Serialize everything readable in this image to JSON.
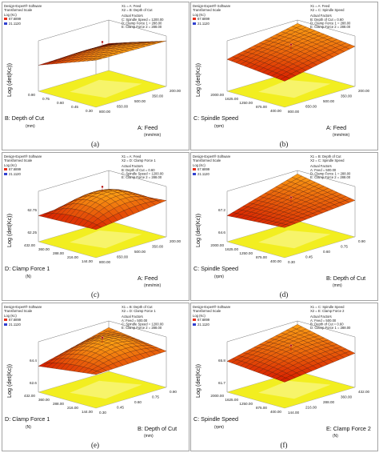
{
  "figure": {
    "software_name": "Design-Expert® Software",
    "scale_note": "Transformed Scale"
  },
  "chart_data": [
    {
      "type": "surface",
      "panel_label": "(a)",
      "legend": {
        "title": "Log (Kc)",
        "max": "67.6899",
        "min": "21.1120"
      },
      "factors": [
        "X1 = A: Feed",
        "X2 = B: Depth of Cut"
      ],
      "actual_title": "Actual Factors",
      "actual_factors": [
        "C: Spindle Speed = 1200.00",
        "D: Clamp Force 1 = 288.00",
        "E: Clamp Force 2 = 288.00"
      ],
      "zlabel": "Log (det(Kc))",
      "z_ticks": [],
      "x_axis": {
        "label": "A: Feed",
        "unit": "(mm/min)",
        "ticks": [
          "800.00",
          "650.00",
          "500.00",
          "350.00",
          "200.00"
        ]
      },
      "y_axis": {
        "label": "B: Depth of Cut",
        "unit": "(mm)",
        "ticks": [
          "0.30",
          "0.45",
          "0.60",
          "0.75",
          "0.90"
        ]
      },
      "surface": {
        "corners": [
          64.6,
          60.2,
          60.4,
          64.3
        ],
        "curvature": 2.0
      },
      "design_point": {
        "x": 500,
        "y": 0.6,
        "z": 62.4
      }
    },
    {
      "type": "surface",
      "panel_label": "(b)",
      "legend": {
        "title": "Log (Kc)",
        "max": "67.6899",
        "min": "21.1120"
      },
      "factors": [
        "X1 = A: Feed",
        "X2 = C: Spindle Speed"
      ],
      "actual_title": "Actual Factors",
      "actual_factors": [
        "B: Depth of Cut = 0.60",
        "D: Clamp Force 1 = 288.00",
        "E: Clamp Force 2 = 288.00"
      ],
      "zlabel": "Log (det(Kc))",
      "z_ticks": [],
      "x_axis": {
        "label": "A: Feed",
        "unit": "(mm/min)",
        "ticks": [
          "800.00",
          "650.00",
          "500.00",
          "350.00",
          "200.00"
        ]
      },
      "y_axis": {
        "label": "C: Spindle Speed",
        "unit": "(rpm)",
        "ticks": [
          "400.00",
          "875.00",
          "1250.00",
          "1625.00",
          "2000.00"
        ]
      },
      "surface": {
        "corners": [
          61.0,
          62.0,
          64.6,
          63.4
        ],
        "curvature": 0.8
      },
      "design_point": {
        "x": 500,
        "y": 1200,
        "z": 62.6
      }
    },
    {
      "type": "surface",
      "panel_label": "(c)",
      "legend": {
        "title": "Log (Kc)",
        "max": "67.6899",
        "min": "21.1120"
      },
      "factors": [
        "X1 = A: Feed",
        "X2 = D: Clamp Force 1"
      ],
      "actual_title": "Actual Factors",
      "actual_factors": [
        "B: Depth of Cut = 0.60",
        "C: Spindle Speed = 1200.00",
        "E: Clamp Force 2 = 288.00"
      ],
      "zlabel": "Log (det(Kc))",
      "z_ticks": [
        "62.75",
        "62.25"
      ],
      "x_axis": {
        "label": "A: Feed",
        "unit": "(mm/min)",
        "ticks": [
          "800.00",
          "650.00",
          "500.00",
          "350.00",
          "200.00"
        ]
      },
      "y_axis": {
        "label": "D: Clamp Force 1",
        "unit": "(N)",
        "ticks": [
          "144.00",
          "216.00",
          "288.00",
          "360.00",
          "432.00"
        ]
      },
      "surface": {
        "corners": [
          61.5,
          61.4,
          61.6,
          61.9
        ],
        "curvature": 1.6
      },
      "design_point": {
        "x": 500,
        "y": 288,
        "z": 62.7
      }
    },
    {
      "type": "surface",
      "panel_label": "(d)",
      "legend": {
        "title": "Log (Kc)",
        "max": "67.6899",
        "min": "21.1120"
      },
      "factors": [
        "X1 = B: Depth of Cut",
        "X2 = C: Spindle Speed"
      ],
      "actual_title": "Actual Factors",
      "actual_factors": [
        "A: Feed = 500.00",
        "D: Clamp Force 1 = 288.00",
        "E: Clamp Force 2 = 288.00"
      ],
      "zlabel": "Log (det(Kc))",
      "z_ticks": [
        "67.2",
        "64.6"
      ],
      "x_axis": {
        "label": "B: Depth of Cut",
        "unit": "(mm)",
        "ticks": [
          "0.30",
          "0.45",
          "0.60",
          "0.75",
          "0.90"
        ]
      },
      "y_axis": {
        "label": "C: Spindle Speed",
        "unit": "(rpm)",
        "ticks": [
          "400.00",
          "875.00",
          "1250.00",
          "1625.00",
          "2000.00"
        ]
      },
      "surface": {
        "corners": [
          62.6,
          61.6,
          66.8,
          64.2
        ],
        "curvature": 0.6
      },
      "design_point": {
        "x": 0.6,
        "y": 1200,
        "z": 64.8
      }
    },
    {
      "type": "surface",
      "panel_label": "(e)",
      "legend": {
        "title": "Log (Kc)",
        "max": "67.6899",
        "min": "21.1120"
      },
      "factors": [
        "X1 = B: Depth of Cut",
        "X2 = D: Clamp Force 1"
      ],
      "actual_title": "Actual Factors",
      "actual_factors": [
        "A: Feed = 500.00",
        "C: Spindle Speed = 1200.00",
        "E: Clamp Force 2 = 288.00"
      ],
      "zlabel": "Log (det(Kc))",
      "z_ticks": [
        "64.4",
        "62.6"
      ],
      "x_axis": {
        "label": "B: Depth of Cut",
        "unit": "(mm)",
        "ticks": [
          "0.30",
          "0.45",
          "0.60",
          "0.75",
          "0.90"
        ]
      },
      "y_axis": {
        "label": "D: Clamp Force 1",
        "unit": "(N)",
        "ticks": [
          "144.00",
          "216.00",
          "288.00",
          "360.00",
          "432.00"
        ]
      },
      "surface": {
        "corners": [
          62.4,
          61.8,
          63.2,
          62.6
        ],
        "curvature": 1.8
      },
      "design_point": {
        "x": 0.6,
        "y": 288,
        "z": 63.5
      }
    },
    {
      "type": "surface",
      "panel_label": "(f)",
      "legend": {
        "title": "Log (Kc)",
        "max": "67.6899",
        "min": "21.1120"
      },
      "factors": [
        "X1 = C: Spindle Speed",
        "X2 = E: Clamp Force 2"
      ],
      "actual_title": "Actual Factors",
      "actual_factors": [
        "A: Feed = 500.00",
        "B: Depth of Cut = 0.60",
        "D: Clamp Force 1 = 288.00"
      ],
      "zlabel": "Log (det(Kc))",
      "z_ticks": [
        "65.8",
        "61.7"
      ],
      "x_axis": {
        "label": "E: Clamp Force 2",
        "unit": "(N)",
        "ticks": [
          "144.00",
          "216.00",
          "288.00",
          "360.00",
          "432.00"
        ]
      },
      "y_axis": {
        "label": "C: Spindle Speed",
        "unit": "(rpm)",
        "ticks": [
          "400.00",
          "875.00",
          "1250.00",
          "1625.00",
          "2000.00"
        ]
      },
      "surface": {
        "corners": [
          62.0,
          62.6,
          64.6,
          63.0
        ],
        "curvature": 1.0
      },
      "design_point": {
        "x": 288,
        "y": 1200,
        "z": 63.9
      }
    }
  ]
}
